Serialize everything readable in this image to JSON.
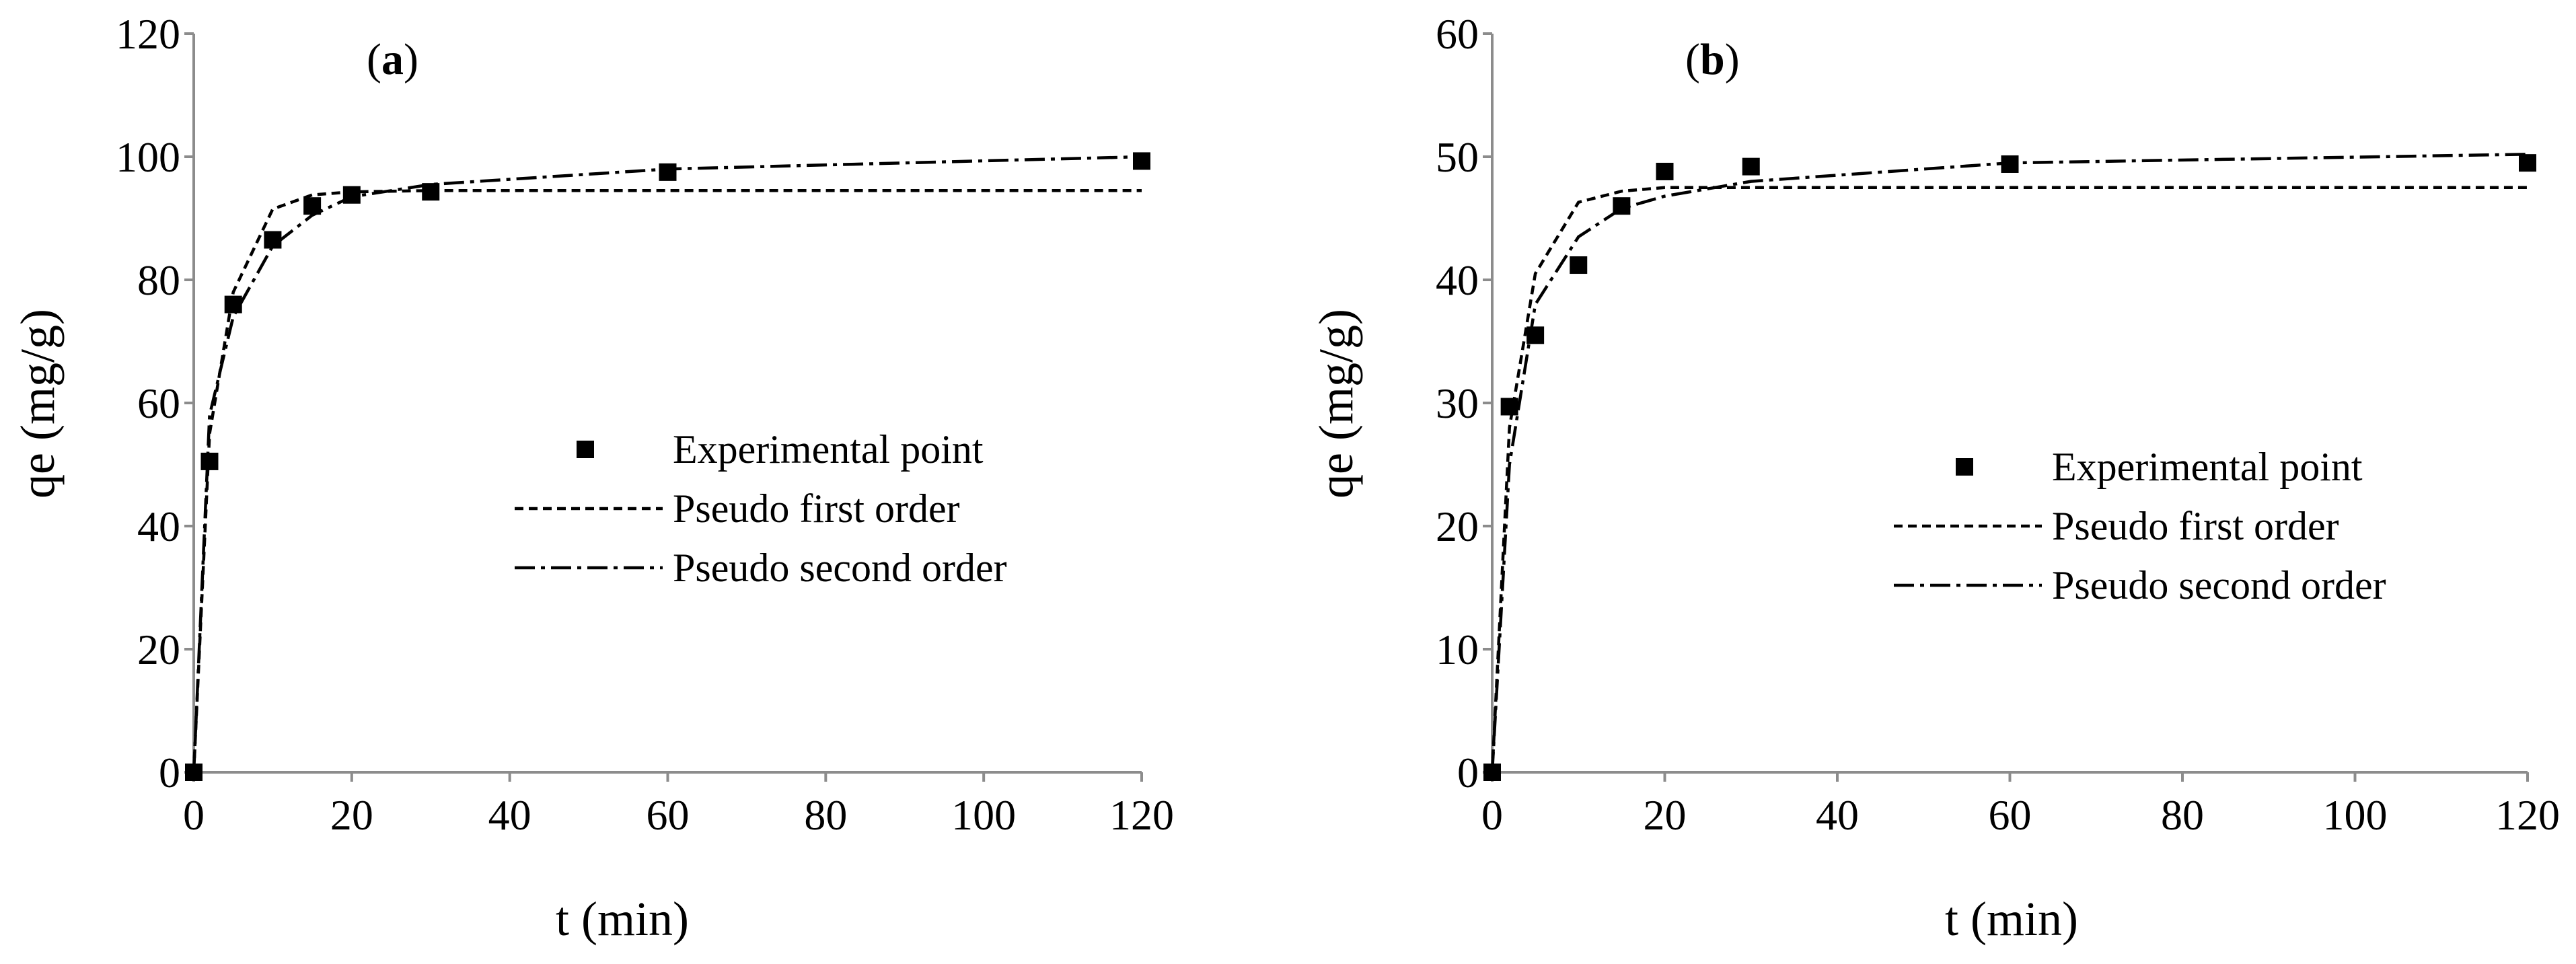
{
  "chart_data": [
    {
      "type": "scatter",
      "panel_label": "(a)",
      "xlabel": "t (min)",
      "ylabel": "qe (mg/g)",
      "xlim": [
        0,
        120
      ],
      "ylim": [
        0,
        120
      ],
      "xticks": [
        0,
        20,
        40,
        60,
        80,
        100,
        120
      ],
      "yticks": [
        0,
        20,
        40,
        60,
        80,
        100,
        120
      ],
      "grid": false,
      "legend_position": "center-right",
      "series": [
        {
          "name": "Experimental point",
          "kind": "markers",
          "x": [
            0,
            2,
            5,
            10,
            15,
            20,
            30,
            60,
            120
          ],
          "y": [
            0,
            50.5,
            76,
            86.5,
            92,
            93.8,
            94.3,
            97.5,
            99.3
          ]
        },
        {
          "name": "Pseudo first order",
          "kind": "dashed",
          "x": [
            0,
            2,
            5,
            10,
            15,
            20,
            30,
            60,
            120
          ],
          "y": [
            0,
            55,
            78,
            91.5,
            93.8,
            94.3,
            94.5,
            94.5,
            94.5
          ]
        },
        {
          "name": "Pseudo second order",
          "kind": "dashdot",
          "x": [
            0,
            2,
            5,
            10,
            15,
            20,
            30,
            60,
            120
          ],
          "y": [
            0,
            58,
            74,
            85.5,
            90.5,
            93.5,
            95.5,
            98,
            100
          ]
        }
      ]
    },
    {
      "type": "scatter",
      "panel_label": "(b)",
      "xlabel": "t (min)",
      "ylabel": "qe (mg/g)",
      "xlim": [
        0,
        120
      ],
      "ylim": [
        0,
        60
      ],
      "xticks": [
        0,
        20,
        40,
        60,
        80,
        100,
        120
      ],
      "yticks": [
        0,
        10,
        20,
        30,
        40,
        50,
        60
      ],
      "grid": false,
      "legend_position": "center-right",
      "series": [
        {
          "name": "Experimental point",
          "kind": "markers",
          "x": [
            0,
            2,
            5,
            10,
            15,
            20,
            30,
            60,
            120
          ],
          "y": [
            0,
            29.7,
            35.5,
            41.2,
            46,
            48.8,
            49.2,
            49.4,
            49.5
          ]
        },
        {
          "name": "Pseudo first order",
          "kind": "dashed",
          "x": [
            0,
            2,
            5,
            10,
            15,
            20,
            30,
            60,
            120
          ],
          "y": [
            0,
            28,
            40.5,
            46.3,
            47.2,
            47.5,
            47.5,
            47.5,
            47.5
          ]
        },
        {
          "name": "Pseudo second order",
          "kind": "dashdot",
          "x": [
            0,
            2,
            5,
            10,
            15,
            20,
            30,
            60,
            120
          ],
          "y": [
            0,
            25,
            38,
            43.5,
            45.8,
            46.8,
            48,
            49.5,
            50.2
          ]
        }
      ]
    }
  ]
}
